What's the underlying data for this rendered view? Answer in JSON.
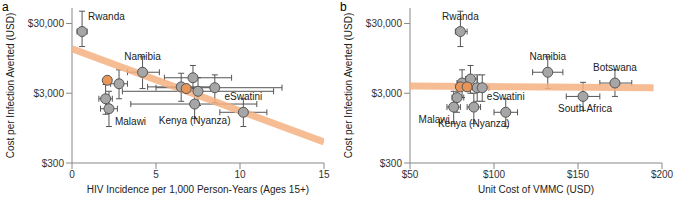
{
  "chart_data": [
    {
      "type": "scatter",
      "panel": "a",
      "x_label": "HIV Incidence per 1,000 Person-Years (Ages 15+)",
      "y_label": "Cost per Infection Averted (USD)",
      "log": "y",
      "xlim": [
        0,
        15
      ],
      "xticks": [
        0,
        5,
        10,
        15
      ],
      "ylim": [
        300,
        50000
      ],
      "yticks": [
        {
          "value": 300,
          "label": "$300"
        },
        {
          "value": 3000,
          "label": "$3,000"
        },
        {
          "value": 30000,
          "label": "$30,000"
        }
      ],
      "series": [
        {
          "color": "#a6a6a6",
          "marker": "circle",
          "x": [
            0.6,
            2.0,
            2.2,
            2.8,
            4.2,
            6.5,
            7.2,
            7.3,
            7.5,
            8.5,
            10.2
          ],
          "values": [
            23000,
            2500,
            1800,
            4100,
            6000,
            3700,
            5000,
            2100,
            3200,
            3600,
            1600
          ],
          "labels": [
            "Rwanda",
            null,
            "Malawi",
            null,
            "Namibia",
            null,
            null,
            "Kenya (Nyanza)",
            null,
            null,
            "eSwatini"
          ],
          "x_error": [
            [
              0.3,
              0.9
            ],
            [
              1.6,
              2.4
            ],
            [
              1.7,
              2.7
            ],
            [
              2.3,
              3.3
            ],
            [
              3.3,
              5.2
            ],
            [
              4.5,
              8.5
            ],
            [
              5.5,
              9.5
            ],
            [
              3.5,
              11.0
            ],
            [
              3.0,
              12.0
            ],
            [
              5.0,
              12.5
            ],
            [
              8.8,
              11.6
            ]
          ],
          "y_error": [
            [
              14000,
              45000
            ],
            [
              1500,
              4000
            ],
            [
              1000,
              3200
            ],
            [
              2500,
              6500
            ],
            [
              3500,
              10000
            ],
            [
              2300,
              5800
            ],
            [
              3200,
              7500
            ],
            [
              1300,
              3500
            ],
            [
              2000,
              5000
            ],
            [
              2200,
              5500
            ],
            [
              1000,
              2500
            ]
          ]
        },
        {
          "color": "#e8955a",
          "marker": "circle",
          "x": [
            2.1,
            6.8
          ],
          "values": [
            4600,
            3500
          ]
        }
      ],
      "trend": {
        "color": "#f4b183",
        "x": [
          0,
          15
        ],
        "values": [
          13000,
          600
        ]
      }
    },
    {
      "type": "scatter",
      "panel": "b",
      "x_label": "Unit Cost of VMMC (USD)",
      "y_label": "Cost per Infection Averted (USD)",
      "log": "y",
      "xlim": [
        50,
        200
      ],
      "xticks": [
        {
          "value": 50,
          "label": "$50"
        },
        {
          "value": 100,
          "label": "$100"
        },
        {
          "value": 150,
          "label": "$150"
        },
        {
          "value": 200,
          "label": "$200"
        }
      ],
      "ylim": [
        300,
        50000
      ],
      "yticks": [
        {
          "value": 300,
          "label": "$300"
        },
        {
          "value": 3000,
          "label": "$3,000"
        },
        {
          "value": 30000,
          "label": "$30,000"
        }
      ],
      "series": [
        {
          "color": "#a6a6a6",
          "marker": "circle",
          "x": [
            80,
            76,
            78,
            81,
            86,
            88,
            90,
            93,
            107,
            132,
            153,
            172
          ],
          "values": [
            23000,
            1900,
            2600,
            4200,
            4800,
            1900,
            3600,
            3600,
            1600,
            6000,
            2700,
            4200
          ],
          "labels": [
            "Rwanda",
            "Malawi",
            null,
            null,
            null,
            "Kenya (Nyanza)",
            null,
            null,
            "eSwatini",
            "Namibia",
            "South Africa",
            "Botswana"
          ],
          "x_error": [
            [
              77,
              84
            ],
            [
              72,
              80
            ],
            [
              75,
              82
            ],
            [
              78,
              85
            ],
            [
              83,
              90
            ],
            [
              84,
              92
            ],
            [
              87,
              94
            ],
            [
              90,
              97
            ],
            [
              100,
              114
            ],
            [
              123,
              141
            ],
            [
              143,
              163
            ],
            [
              163,
              182
            ]
          ],
          "y_error": [
            [
              14000,
              45000
            ],
            [
              1100,
              3200
            ],
            [
              1600,
              4000
            ],
            [
              2600,
              6500
            ],
            [
              3000,
              7500
            ],
            [
              1100,
              3000
            ],
            [
              2300,
              5500
            ],
            [
              2300,
              5500
            ],
            [
              1000,
              2500
            ],
            [
              3500,
              10000
            ],
            [
              1700,
              4300
            ],
            [
              2700,
              6500
            ]
          ]
        },
        {
          "color": "#e8955a",
          "marker": "circle",
          "x": [
            80,
            84
          ],
          "values": [
            3700,
            3700
          ]
        }
      ],
      "trend": {
        "color": "#f4b183",
        "x": [
          50,
          195
        ],
        "values": [
          3800,
          3600
        ]
      }
    }
  ]
}
